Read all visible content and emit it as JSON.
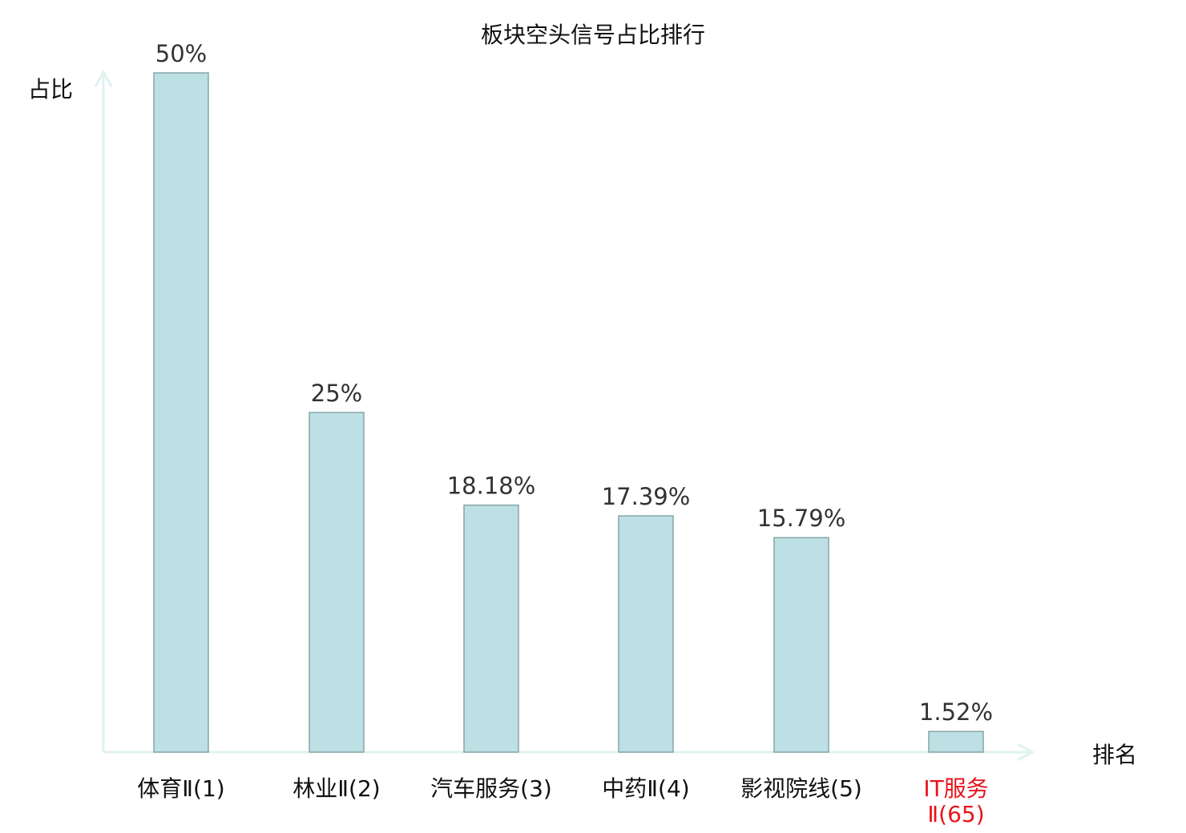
{
  "chart_data": {
    "type": "bar",
    "title": "板块空头信号占比排行",
    "ylabel": "占比",
    "xlabel": "排名",
    "ylim": [
      0,
      50
    ],
    "grid": false,
    "categories": [
      "体育Ⅱ(1)",
      "林业Ⅱ(2)",
      "汽车服务(3)",
      "中药Ⅱ(4)",
      "影视院线(5)",
      "IT服务Ⅱ(65)"
    ],
    "category_lines": [
      [
        "体育Ⅱ(1)"
      ],
      [
        "林业Ⅱ(2)"
      ],
      [
        "汽车服务(3)"
      ],
      [
        "中药Ⅱ(4)"
      ],
      [
        "影视院线(5)"
      ],
      [
        "IT服务",
        "Ⅱ(65)"
      ]
    ],
    "values": [
      50,
      25,
      18.18,
      17.39,
      15.79,
      1.52
    ],
    "value_labels": [
      "50%",
      "25%",
      "18.18%",
      "17.39%",
      "15.79%",
      "1.52%"
    ],
    "highlight_index": 5,
    "colors": {
      "bar_fill": "#bce0e3",
      "bar_stroke": "#87a6a8",
      "axis": "#dff2f0",
      "highlight_label": "#e8141c",
      "label": "#111111",
      "value_label": "#333333"
    }
  }
}
